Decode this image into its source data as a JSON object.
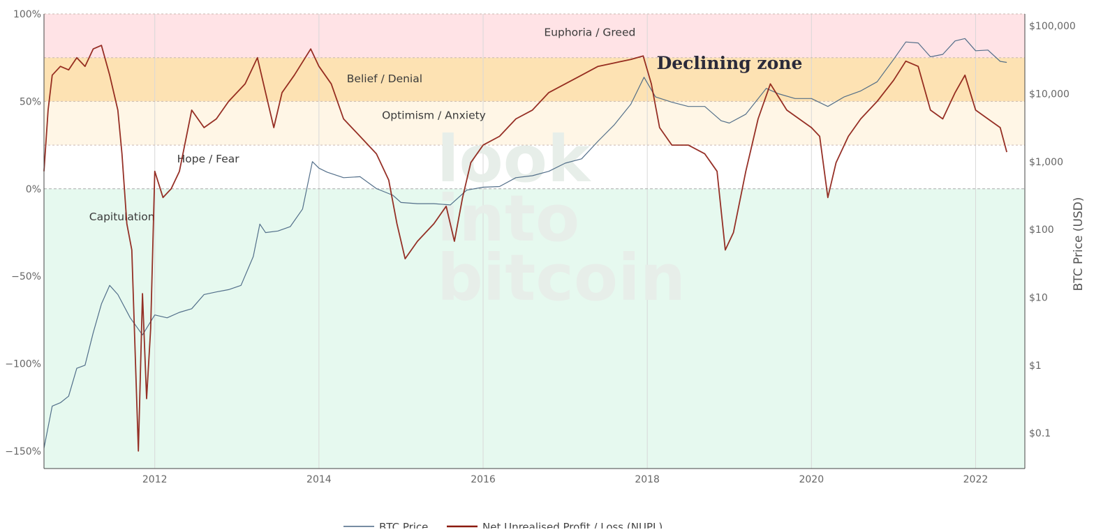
{
  "chart_data": {
    "type": "line",
    "zones": [
      {
        "label": "Euphoria / Greed",
        "from": 75,
        "to": 100,
        "color": "#ffe3e6"
      },
      {
        "label": "Belief / Denial",
        "from": 50,
        "to": 75,
        "color": "#fde2b3"
      },
      {
        "label": "Optimism / Anxiety",
        "from": 25,
        "to": 50,
        "color": "#fff6e6"
      },
      {
        "label": "Hope / Fear",
        "from": 0,
        "to": 25,
        "color": "#ffffff"
      },
      {
        "label": "Capitulation",
        "from": -160,
        "to": 0,
        "color": "#e6f9ef"
      }
    ],
    "annotation": "Declining zone",
    "watermark": [
      "look",
      "into",
      "bitcoin"
    ],
    "y_left_ticks": [
      "100%",
      "50%",
      "0%",
      "−50%",
      "−100%",
      "−150%"
    ],
    "y_left_values": [
      100,
      50,
      0,
      -50,
      -100,
      -150
    ],
    "y_left_range": [
      -160,
      100
    ],
    "y_right_ticks": [
      "$100,000",
      "$10,000",
      "$1,000",
      "$100",
      "$10",
      "$1",
      "$0.1"
    ],
    "y_right_values": [
      100000,
      10000,
      1000,
      100,
      10,
      1,
      0.1
    ],
    "y_right_range": [
      0.03,
      150000
    ],
    "y_right_scale": "log",
    "y_right_label": "BTC Price (USD)",
    "x_ticks": [
      "2012",
      "2014",
      "2016",
      "2018",
      "2020",
      "2022"
    ],
    "x_tick_values": [
      2012,
      2014,
      2016,
      2018,
      2020,
      2022
    ],
    "x_range": [
      2010.65,
      2022.6
    ],
    "grid": true,
    "legend_position": "bottom",
    "series": [
      {
        "name": "BTC Price",
        "axis": "right",
        "color": "#4a6784",
        "x": [
          2010.65,
          2010.75,
          2010.85,
          2010.95,
          2011.05,
          2011.15,
          2011.25,
          2011.35,
          2011.45,
          2011.55,
          2011.7,
          2011.85,
          2012.0,
          2012.15,
          2012.3,
          2012.45,
          2012.6,
          2012.75,
          2012.9,
          2013.05,
          2013.2,
          2013.28,
          2013.35,
          2013.5,
          2013.65,
          2013.8,
          2013.92,
          2014.0,
          2014.1,
          2014.3,
          2014.5,
          2014.7,
          2014.9,
          2015.0,
          2015.2,
          2015.4,
          2015.6,
          2015.8,
          2016.0,
          2016.2,
          2016.4,
          2016.6,
          2016.8,
          2017.0,
          2017.2,
          2017.4,
          2017.6,
          2017.8,
          2017.96,
          2018.1,
          2018.3,
          2018.5,
          2018.7,
          2018.9,
          2019.0,
          2019.2,
          2019.45,
          2019.6,
          2019.8,
          2020.0,
          2020.2,
          2020.4,
          2020.6,
          2020.8,
          2021.0,
          2021.15,
          2021.3,
          2021.45,
          2021.6,
          2021.75,
          2021.87,
          2022.0,
          2022.15,
          2022.3,
          2022.38
        ],
        "values": [
          0.06,
          0.25,
          0.28,
          0.35,
          0.9,
          1,
          3,
          8,
          15,
          11,
          5,
          2.8,
          5.5,
          5,
          6,
          6.8,
          11,
          12,
          13,
          15,
          40,
          120,
          90,
          95,
          110,
          200,
          1000,
          800,
          700,
          580,
          600,
          400,
          320,
          250,
          240,
          240,
          230,
          380,
          420,
          430,
          580,
          620,
          720,
          950,
          1100,
          2000,
          3500,
          7000,
          17500,
          9000,
          7500,
          6500,
          6500,
          4000,
          3700,
          5000,
          12000,
          10000,
          8500,
          8500,
          6500,
          9000,
          11000,
          15000,
          32000,
          58000,
          56000,
          35000,
          38000,
          60000,
          65000,
          43000,
          44000,
          30000,
          29000
        ]
      },
      {
        "name": "Net Unrealised Profit / Loss (NUPL)",
        "axis": "left",
        "color": "#8b1a0f",
        "x": [
          2010.65,
          2010.7,
          2010.75,
          2010.85,
          2010.95,
          2011.05,
          2011.15,
          2011.25,
          2011.35,
          2011.45,
          2011.55,
          2011.6,
          2011.66,
          2011.72,
          2011.8,
          2011.85,
          2011.9,
          2011.95,
          2012.0,
          2012.1,
          2012.2,
          2012.3,
          2012.45,
          2012.6,
          2012.75,
          2012.9,
          2013.1,
          2013.25,
          2013.35,
          2013.45,
          2013.55,
          2013.7,
          2013.9,
          2014.0,
          2014.15,
          2014.3,
          2014.5,
          2014.7,
          2014.85,
          2014.95,
          2015.05,
          2015.2,
          2015.4,
          2015.55,
          2015.65,
          2015.75,
          2015.85,
          2016.0,
          2016.2,
          2016.4,
          2016.6,
          2016.8,
          2017.0,
          2017.2,
          2017.4,
          2017.6,
          2017.8,
          2017.95,
          2018.05,
          2018.15,
          2018.3,
          2018.5,
          2018.7,
          2018.85,
          2018.95,
          2019.05,
          2019.2,
          2019.35,
          2019.5,
          2019.7,
          2019.85,
          2020.0,
          2020.1,
          2020.2,
          2020.3,
          2020.45,
          2020.6,
          2020.8,
          2021.0,
          2021.15,
          2021.3,
          2021.45,
          2021.6,
          2021.75,
          2021.87,
          2022.0,
          2022.15,
          2022.3,
          2022.38
        ],
        "values": [
          10,
          45,
          65,
          70,
          68,
          75,
          70,
          80,
          82,
          65,
          45,
          20,
          -20,
          -35,
          -150,
          -60,
          -120,
          -80,
          10,
          -5,
          0,
          10,
          45,
          35,
          40,
          50,
          60,
          75,
          55,
          35,
          55,
          65,
          80,
          70,
          60,
          40,
          30,
          20,
          5,
          -20,
          -40,
          -30,
          -20,
          -10,
          -30,
          -5,
          15,
          25,
          30,
          40,
          45,
          55,
          60,
          65,
          70,
          72,
          74,
          76,
          60,
          35,
          25,
          25,
          20,
          10,
          -35,
          -25,
          10,
          40,
          60,
          45,
          40,
          35,
          30,
          -5,
          15,
          30,
          40,
          50,
          62,
          73,
          70,
          45,
          40,
          55,
          65,
          45,
          40,
          35,
          21
        ]
      }
    ]
  }
}
